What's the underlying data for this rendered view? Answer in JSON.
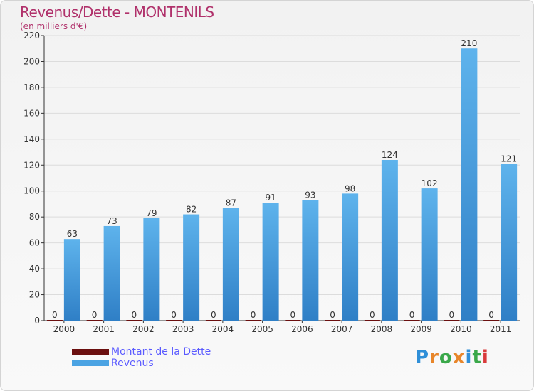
{
  "chart_data": {
    "type": "bar",
    "title": "Revenus/Dette - MONTENILS",
    "subtitle": "(en milliers d'€)",
    "xlabel": "",
    "ylabel": "",
    "ylim": [
      0,
      220
    ],
    "yticks": [
      0,
      20,
      40,
      60,
      80,
      100,
      120,
      140,
      160,
      180,
      200,
      220
    ],
    "grid": true,
    "categories": [
      "2000",
      "2001",
      "2002",
      "2003",
      "2004",
      "2005",
      "2006",
      "2007",
      "2008",
      "2009",
      "2010",
      "2011"
    ],
    "series": [
      {
        "name": "Montant de la Dette",
        "color": "#6b0f0f",
        "values": [
          0,
          0,
          0,
          0,
          0,
          0,
          0,
          0,
          0,
          0,
          0,
          0
        ]
      },
      {
        "name": "Revenus",
        "color": "#4ba3e3",
        "values": [
          63,
          73,
          79,
          82,
          87,
          91,
          93,
          98,
          124,
          102,
          210,
          121
        ]
      }
    ]
  },
  "legend": {
    "items": [
      {
        "label": "Montant de la Dette",
        "color": "#6b0f0f"
      },
      {
        "label": "Revenus",
        "color": "#4ba3e3"
      }
    ]
  },
  "logo": {
    "text": "Proxiti"
  }
}
